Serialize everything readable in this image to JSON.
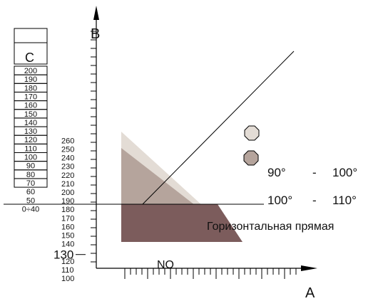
{
  "axes": {
    "x_label": "A",
    "y_label": "B"
  },
  "scale_b_labels": [
    "100",
    "110",
    "120",
    "130",
    "140",
    "150",
    "160",
    "170",
    "180",
    "190",
    "200",
    "210",
    "220",
    "230",
    "240",
    "250",
    "260"
  ],
  "scale_b_highlight": "130",
  "scale_c": {
    "label": "C",
    "values": [
      "200",
      "190",
      "180",
      "170",
      "160",
      "150",
      "140",
      "130",
      "120",
      "110",
      "100",
      "90",
      "80",
      "70",
      "60",
      "50",
      "0÷40"
    ]
  },
  "no_label": "NO",
  "legend": {
    "light_range": [
      "90°",
      "-",
      "100°"
    ],
    "dark_range": [
      "100°",
      "-",
      "110°"
    ],
    "light_color": "#e3dcd5",
    "dark_color": "#b5a49c"
  },
  "horizontal_line_label": "Горизонтальная прямая",
  "colors": {
    "light": "#e3dcd5",
    "mid": "#b5a49c",
    "dark": "#7c5c5c",
    "line": "#000000"
  }
}
